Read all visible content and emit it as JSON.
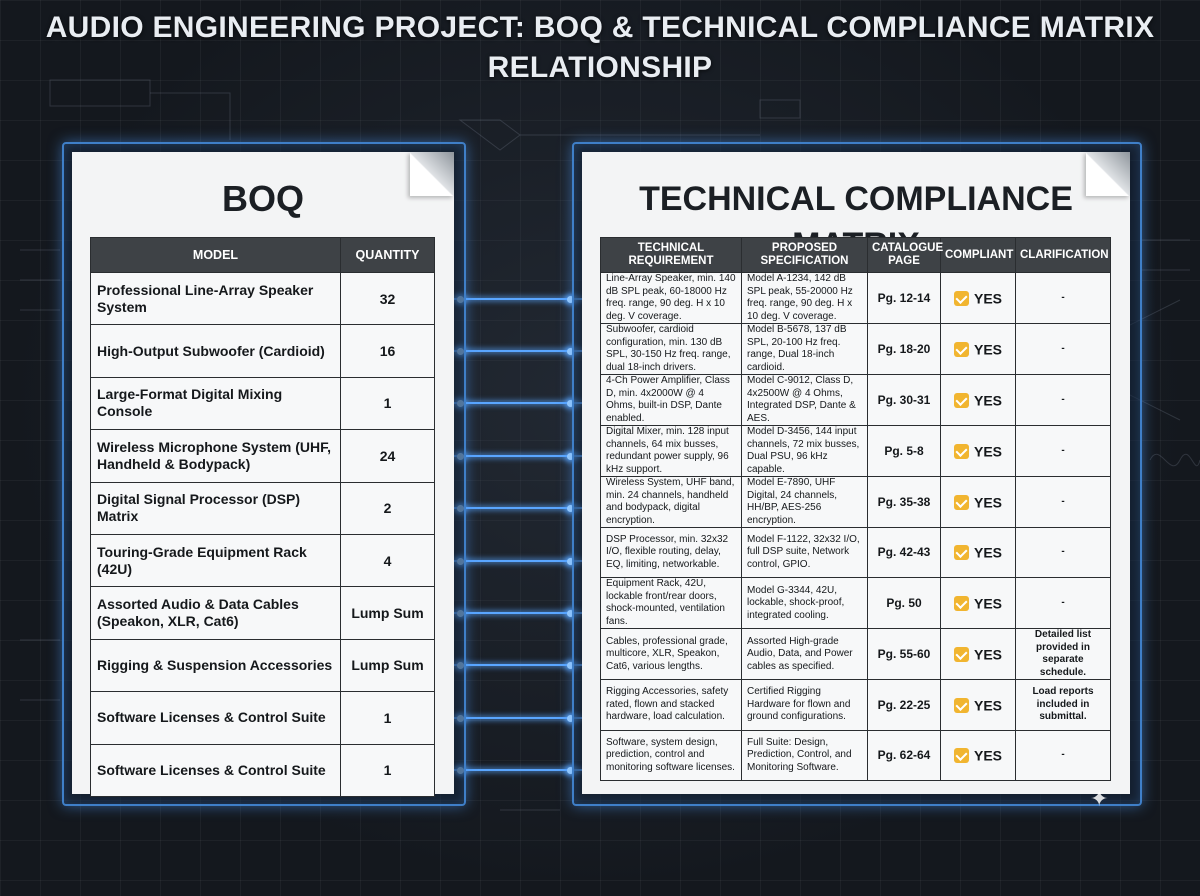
{
  "title": "AUDIO ENGINEERING PROJECT: BOQ & TECHNICAL COMPLIANCE MATRIX RELATIONSHIP",
  "boq": {
    "title": "BOQ",
    "headers": [
      "MODEL",
      "QUANTITY"
    ],
    "rows": [
      {
        "model": "Professional Line-Array Speaker System",
        "quantity": "32"
      },
      {
        "model": "High-Output Subwoofer (Cardioid)",
        "quantity": "16"
      },
      {
        "model": "Large-Format Digital Mixing Console",
        "quantity": "1"
      },
      {
        "model": "Wireless Microphone System (UHF, Handheld & Bodypack)",
        "quantity": "24"
      },
      {
        "model": "Digital Signal Processor (DSP) Matrix",
        "quantity": "2"
      },
      {
        "model": "Touring-Grade Equipment Rack (42U)",
        "quantity": "4"
      },
      {
        "model": "Assorted Audio & Data Cables (Speakon, XLR, Cat6)",
        "quantity": "Lump Sum"
      },
      {
        "model": "Rigging & Suspension Accessories",
        "quantity": "Lump Sum"
      },
      {
        "model": "Software Licenses & Control Suite",
        "quantity": "1"
      },
      {
        "model": "Software Licenses & Control Suite",
        "quantity": "1"
      }
    ]
  },
  "tcm": {
    "title": "TECHNICAL COMPLIANCE MATRIX",
    "headers": [
      "TECHNICAL REQUIREMENT",
      "PROPOSED SPECIFICATION",
      "CATALOGUE PAGE",
      "COMPLIANT",
      "CLARIFICATION"
    ],
    "rows": [
      {
        "requirement": "Line-Array Speaker, min. 140 dB SPL peak, 60-18000 Hz freq. range, 90 deg. H x 10 deg. V coverage.",
        "specification": "Model A-1234, 142 dB SPL peak, 55-20000 Hz freq. range, 90 deg. H x 10 deg. V coverage.",
        "page": "Pg. 12-14",
        "compliant": "YES",
        "clarification": "-"
      },
      {
        "requirement": "Subwoofer, cardioid configuration, min. 130 dB SPL, 30-150 Hz freq. range, dual 18-inch drivers.",
        "specification": "Model B-5678, 137 dB SPL, 20-100 Hz freq. range, Dual 18-inch cardioid.",
        "page": "Pg. 18-20",
        "compliant": "YES",
        "clarification": "-"
      },
      {
        "requirement": "4-Ch Power Amplifier, Class D, min. 4x2000W @ 4 Ohms, built-in DSP, Dante enabled.",
        "specification": "Model C-9012, Class D, 4x2500W @ 4 Ohms, Integrated DSP, Dante & AES.",
        "page": "Pg. 30-31",
        "compliant": "YES",
        "clarification": "-"
      },
      {
        "requirement": "Digital Mixer, min. 128 input channels, 64 mix busses, redundant power supply, 96 kHz support.",
        "specification": "Model D-3456, 144 input channels, 72 mix busses, Dual PSU, 96 kHz capable.",
        "page": "Pg. 5-8",
        "compliant": "YES",
        "clarification": "-"
      },
      {
        "requirement": "Wireless System, UHF band, min. 24 channels, handheld and bodypack, digital encryption.",
        "specification": "Model E-7890, UHF Digital, 24 channels, HH/BP, AES-256 encryption.",
        "page": "Pg. 35-38",
        "compliant": "YES",
        "clarification": "-"
      },
      {
        "requirement": "DSP Processor, min. 32x32 I/O, flexible routing, delay, EQ, limiting, networkable.",
        "specification": "Model F-1122, 32x32 I/O, full DSP suite, Network control, GPIO.",
        "page": "Pg. 42-43",
        "compliant": "YES",
        "clarification": "-"
      },
      {
        "requirement": "Equipment Rack, 42U, lockable front/rear doors, shock-mounted, ventilation fans.",
        "specification": "Model G-3344, 42U, lockable, shock-proof, integrated cooling.",
        "page": "Pg. 50",
        "compliant": "YES",
        "clarification": "-"
      },
      {
        "requirement": "Cables, professional grade, multicore, XLR, Speakon, Cat6, various lengths.",
        "specification": "Assorted High-grade Audio, Data, and Power cables as specified.",
        "page": "Pg. 55-60",
        "compliant": "YES",
        "clarification": "Detailed list provided in separate schedule."
      },
      {
        "requirement": "Rigging Accessories, safety rated, flown and stacked hardware, load calculation.",
        "specification": "Certified Rigging Hardware for flown and ground configurations.",
        "page": "Pg. 22-25",
        "compliant": "YES",
        "clarification": "Load reports included in submittal."
      },
      {
        "requirement": "Software, system design, prediction, control and monitoring software licenses.",
        "specification": "Full Suite: Design, Prediction, Control, and Monitoring Software.",
        "page": "Pg. 62-64",
        "compliant": "YES",
        "clarification": "-"
      }
    ]
  },
  "colors": {
    "background": "#14181e",
    "glow": "#4a96f0",
    "header": "#3e4246",
    "check": "#f1b530"
  }
}
